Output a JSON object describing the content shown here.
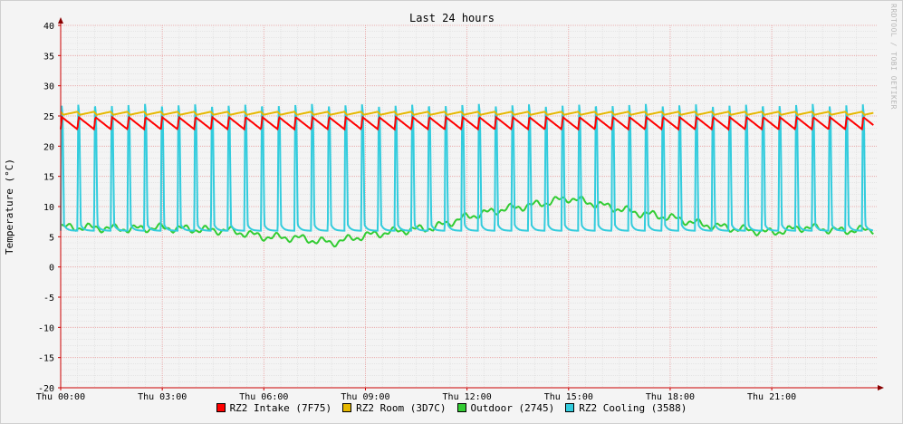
{
  "chart_data": {
    "type": "line",
    "title": "Last 24 hours",
    "ylabel": "Temperature (°C)",
    "xlabel": "",
    "ylim": [
      -20,
      40
    ],
    "yticks": [
      -20,
      -15,
      -10,
      -5,
      0,
      5,
      10,
      15,
      20,
      25,
      30,
      35,
      40
    ],
    "xlim_hours": [
      0,
      24.1
    ],
    "xticks": [
      {
        "label": "Thu 00:00",
        "h": 0
      },
      {
        "label": "Thu 03:00",
        "h": 3
      },
      {
        "label": "Thu 06:00",
        "h": 6
      },
      {
        "label": "Thu 09:00",
        "h": 9
      },
      {
        "label": "Thu 12:00",
        "h": 12
      },
      {
        "label": "Thu 15:00",
        "h": 15
      },
      {
        "label": "Thu 18:00",
        "h": 18
      },
      {
        "label": "Thu 21:00",
        "h": 21
      }
    ],
    "grid": true,
    "legend_position": "bottom",
    "series": [
      {
        "name": "RZ2 Intake (7F75)",
        "color": "#ff0000",
        "x_hours": [
          0,
          3,
          6,
          9,
          12,
          15,
          18,
          21,
          24
        ],
        "values": [
          24,
          24,
          24,
          24,
          24,
          24,
          24,
          24,
          24
        ]
      },
      {
        "name": "RZ2 Room (3D7C)",
        "color": "#e6b800",
        "x_hours": [
          0,
          3,
          6,
          9,
          12,
          15,
          18,
          21,
          24
        ],
        "values": [
          25.7,
          25.7,
          25.7,
          25.7,
          25.7,
          25.7,
          25.7,
          25.7,
          25.7
        ]
      },
      {
        "name": "Outdoor (2745)",
        "color": "#33cc33",
        "x_hours": [
          0,
          1,
          2,
          3,
          4,
          5,
          6,
          7,
          8,
          9,
          10,
          11,
          12,
          13,
          14,
          15,
          16,
          17,
          18,
          19,
          20,
          21,
          22,
          23,
          24
        ],
        "values": [
          6.6,
          6.5,
          6.3,
          6.5,
          6.2,
          6.0,
          5.0,
          4.8,
          4.0,
          5.2,
          6.0,
          6.5,
          8.3,
          9.5,
          10.3,
          11.4,
          10.2,
          9.0,
          8.2,
          7.0,
          6.3,
          5.7,
          6.6,
          6.0,
          6.2
        ]
      },
      {
        "name": "RZ2 Cooling (3588)",
        "color": "#33ccdd",
        "cycle_period_hours": 0.493,
        "baseline": 6.0,
        "peak": 27.0,
        "x_hours": [
          0,
          6,
          12,
          18,
          24
        ],
        "values": [
          6.0,
          6.0,
          6.0,
          6.0,
          6.0
        ]
      }
    ]
  },
  "watermark": "RRDTOOL / TOBI OETIKER"
}
